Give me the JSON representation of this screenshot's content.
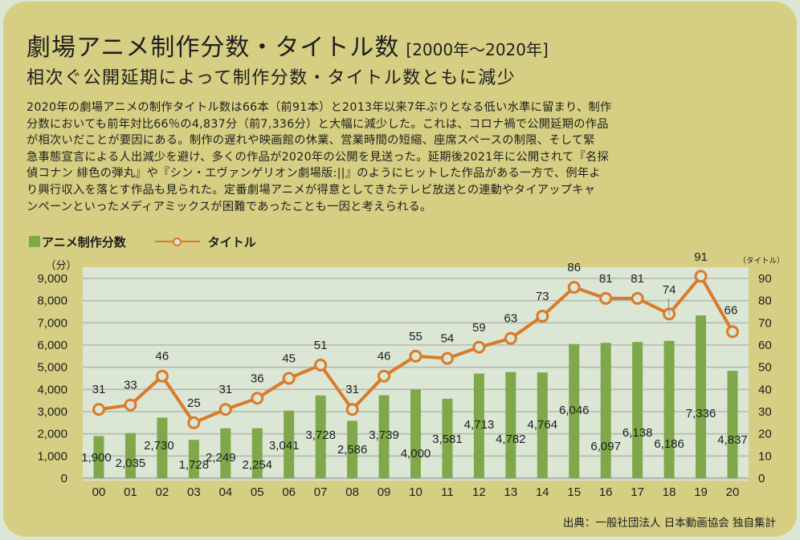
{
  "header": {
    "title": "劇場アニメ制作分数・タイトル数",
    "title_range": "[2000年～2020年]",
    "subtitle": "相次ぐ公開延期によって制作分数・タイトル数ともに減少"
  },
  "body_lines": [
    "2020年の劇場アニメの制作タイトル数は66本（前91本）と2013年以来7年ぶりとなる低い水準に留まり、制作",
    "分数においても前年対比66％の4,837分（前7,336分）と大幅に減少した。これは、コロナ禍で公開延期の作品",
    "が相次いだことが要因にある。制作の遅れや映画館の休業、営業時間の短縮、座席スペースの制限、そして緊",
    "急事態宣言による人出減少を避け、多くの作品が2020年の公開を見送った。延期後2021年に公開されて『名探",
    "偵コナン 緋色の弾丸』や『シン・エヴァンゲリオン劇場版:||』のようにヒットした作品がある一方で、例年よ",
    "り興行収入を落とす作品も見られた。定番劇場アニメが得意としてきたテレビ放送との連動やタイアップキャ",
    "ンペーンといったメディアミックスが困難であったことも一因と考えられる。"
  ],
  "legend": {
    "bars_label": "アニメ制作分数",
    "line_label": "タイトル"
  },
  "source": "出典：一般社団法人 日本動画協会 独自集計",
  "colors": {
    "bar": "#7fa84a",
    "line": "#d97b28",
    "plot_bg": "#dbe6d5",
    "grid": "#b3bab0",
    "card": "#d6ce82"
  },
  "chart_data": {
    "type": "bar+line",
    "title": "劇場アニメ制作分数・タイトル数",
    "categories": [
      "00",
      "01",
      "02",
      "03",
      "04",
      "05",
      "06",
      "07",
      "08",
      "09",
      "10",
      "11",
      "12",
      "13",
      "14",
      "15",
      "16",
      "17",
      "18",
      "19",
      "20"
    ],
    "series": [
      {
        "name": "アニメ制作分数",
        "type": "bar",
        "axis": "left",
        "values": [
          1900,
          2035,
          2730,
          1728,
          2249,
          2254,
          3041,
          3728,
          2586,
          3739,
          4000,
          3581,
          4713,
          4782,
          4764,
          6046,
          6097,
          6138,
          6186,
          7336,
          4837
        ],
        "labels": [
          "1,900",
          "2,035",
          "2,730",
          "1,728",
          "2,249",
          "2,254",
          "3,041",
          "3,728",
          "2,586",
          "3,739",
          "4,000",
          "3,581",
          "4,713",
          "4,782",
          "4,764",
          "6,046",
          "6,097",
          "6,138",
          "6,186",
          "7,336",
          "4,837"
        ]
      },
      {
        "name": "タイトル",
        "type": "line",
        "axis": "right",
        "values": [
          31,
          33,
          46,
          25,
          31,
          36,
          45,
          51,
          31,
          46,
          55,
          54,
          59,
          63,
          73,
          86,
          81,
          81,
          74,
          91,
          66
        ]
      }
    ],
    "y_left": {
      "unit": "（分）",
      "range": [
        0,
        9000
      ],
      "ticks": [
        "0",
        "1,000",
        "2,000",
        "3,000",
        "4,000",
        "5,000",
        "6,000",
        "7,000",
        "8,000",
        "9,000"
      ]
    },
    "y_right": {
      "unit": "（タイトル）",
      "range": [
        0,
        90
      ],
      "ticks": [
        "0",
        "10",
        "20",
        "30",
        "40",
        "50",
        "60",
        "70",
        "80",
        "90"
      ]
    },
    "grid": true,
    "legend_position": "top-left"
  }
}
